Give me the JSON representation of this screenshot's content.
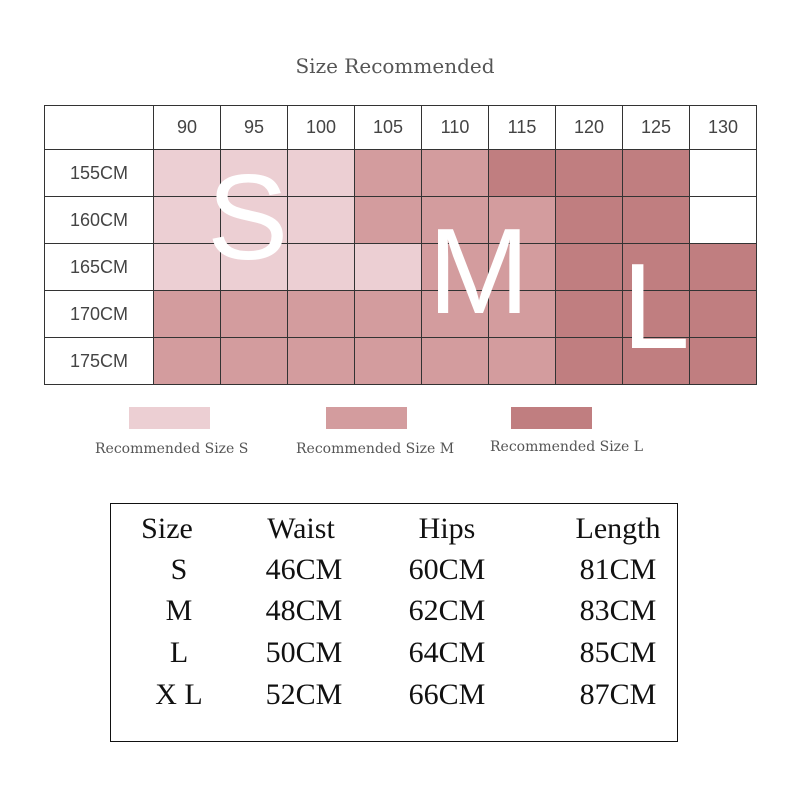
{
  "title": "Size Recommended",
  "colors": {
    "S": "#eccfd3",
    "M": "#d39c9e",
    "L": "#c07e80",
    "none": "#ffffff"
  },
  "chart_data": {
    "type": "heatmap",
    "title": "Size Recommended",
    "x": [
      "90",
      "95",
      "100",
      "105",
      "110",
      "115",
      "120",
      "125",
      "130"
    ],
    "y": [
      "155CM",
      "160CM",
      "165CM",
      "170CM",
      "175CM"
    ],
    "values": [
      [
        "S",
        "S",
        "S",
        "M",
        "M",
        "L",
        "L",
        "L",
        ""
      ],
      [
        "S",
        "S",
        "S",
        "M",
        "M",
        "M",
        "L",
        "L",
        ""
      ],
      [
        "S",
        "S",
        "S",
        "S",
        "M",
        "M",
        "L",
        "L",
        "L"
      ],
      [
        "M",
        "M",
        "M",
        "M",
        "M",
        "M",
        "L",
        "L",
        "L"
      ],
      [
        "M",
        "M",
        "M",
        "M",
        "M",
        "M",
        "L",
        "L",
        "L"
      ]
    ],
    "overlay_letters": [
      "S",
      "M",
      "L"
    ]
  },
  "legend": [
    {
      "key": "S",
      "label": "Recommended Size S"
    },
    {
      "key": "M",
      "label": "Recommended Size M"
    },
    {
      "key": "L",
      "label": "Recommended Size L"
    }
  ],
  "size_table": {
    "headers": [
      "Size",
      "Waist",
      "Hips",
      "Length"
    ],
    "rows": [
      [
        "S",
        "46CM",
        "60CM",
        "81CM"
      ],
      [
        "M",
        "48CM",
        "62CM",
        "83CM"
      ],
      [
        "L",
        "50CM",
        "64CM",
        "85CM"
      ],
      [
        "X L",
        "52CM",
        "66CM",
        "87CM"
      ]
    ]
  }
}
